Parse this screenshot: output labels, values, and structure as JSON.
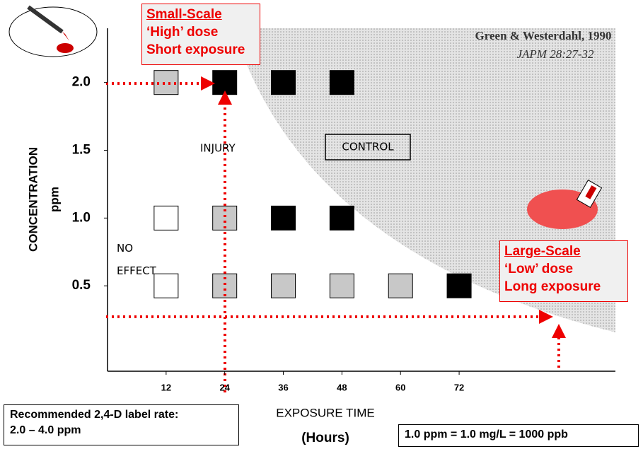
{
  "chart_data": {
    "type": "scatter",
    "xlim": [
      0,
      104
    ],
    "ylim": [
      -0.13,
      2.4
    ],
    "xticks": [
      12,
      24,
      36,
      48,
      60,
      72
    ],
    "yticks": [
      0.5,
      {
        "value": 1,
        "label": "1.0"
      },
      1.5,
      {
        "value": 2,
        "label": "2.0"
      }
    ],
    "x_label": "EXPOSURE TIME",
    "x_unit": "(Hours)",
    "y_label": "CONCENTRATION",
    "y_unit": "ppm",
    "series": [
      {
        "name": "NO EFFECT",
        "color": "#ffffff",
        "x": [
          12,
          12
        ],
        "values": [
          1,
          0.5
        ]
      },
      {
        "name": "INJURY",
        "color": "#c8c8c8",
        "x": [
          12,
          24,
          24,
          36,
          48,
          60
        ],
        "values": [
          2,
          1,
          0.5,
          0.5,
          0.5,
          0.5
        ]
      },
      {
        "name": "CONTROL",
        "color": "#000000",
        "x": [
          24,
          36,
          48,
          36,
          48,
          72
        ],
        "values": [
          2,
          2,
          2,
          1,
          1,
          0.5
        ]
      }
    ],
    "citation": [
      "Green & Westerdahl, 1990",
      "JAPM 28:27-32"
    ]
  },
  "callouts": {
    "small": [
      "Small-Scale",
      "‘High’ dose",
      "Short exposure"
    ],
    "large": [
      "Large-Scale",
      "‘Low’ dose",
      "Long exposure"
    ]
  },
  "notes": {
    "label_rate": [
      "Recommended 2,4-D label rate:",
      "2.0 – 4.0 ppm"
    ],
    "conversion": "1.0 ppm = 1.0 mg/L = 1000 ppb"
  }
}
